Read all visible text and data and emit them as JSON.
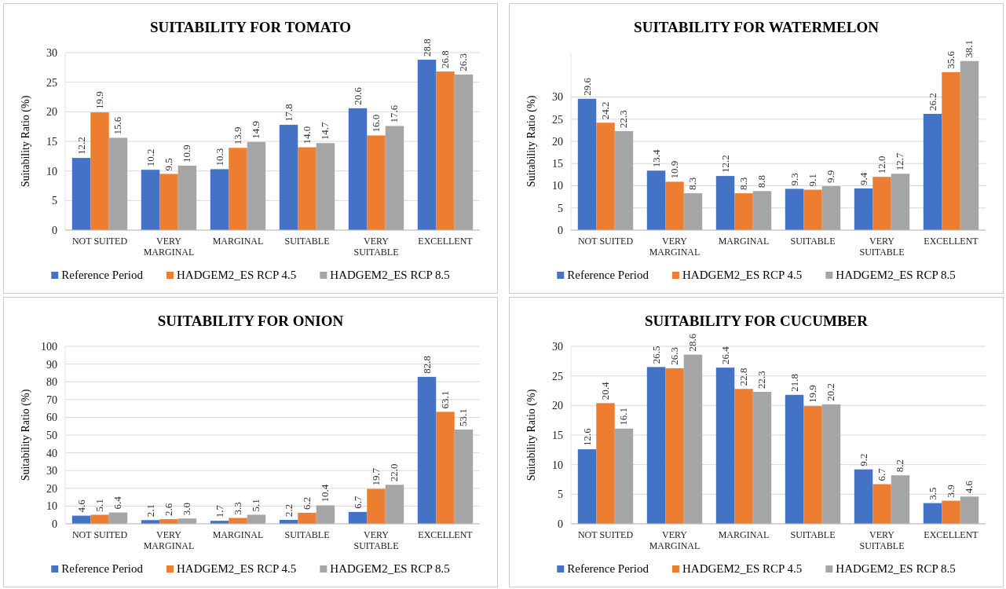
{
  "chart_data": [
    {
      "type": "bar",
      "title": "SUITABILITY FOR TOMATO",
      "ylabel": "Suitability  Ratio (%)",
      "categories": [
        "NOT SUITED",
        "VERY MARGINAL",
        "MARGINAL",
        "SUITABLE",
        "VERY SUITABLE",
        "EXCELLENT"
      ],
      "series": [
        {
          "name": "Reference Period",
          "color": "#4472c4",
          "values": [
            12.2,
            10.2,
            10.3,
            17.8,
            20.6,
            28.8
          ],
          "value_labels": [
            "12.2",
            "10.2",
            "10.3",
            "17.8",
            "20.6",
            "28.8"
          ]
        },
        {
          "name": "HADGEM2_ES RCP 4.5",
          "color": "#ed7d31",
          "values": [
            19.9,
            9.5,
            13.9,
            14.0,
            16.0,
            26.8
          ],
          "value_labels": [
            "19.9",
            "9.5",
            "13.9",
            "14.0",
            "16.0",
            "26.8"
          ]
        },
        {
          "name": "HADGEM2_ES RCP 8.5",
          "color": "#a5a5a5",
          "values": [
            15.6,
            10.9,
            14.9,
            14.7,
            17.6,
            26.3
          ],
          "value_labels": [
            "15.6",
            "10.9",
            "14.9",
            "14.7",
            "17.6",
            "26.3"
          ]
        }
      ],
      "ylim": [
        0,
        30
      ],
      "yticks": [
        0,
        5,
        10,
        15,
        20,
        25,
        30
      ],
      "grid": "y",
      "legend": "bottom"
    },
    {
      "type": "bar",
      "title": "SUITABILITY FOR WATERMELON",
      "ylabel": "Suitability  Ratio (%)",
      "categories": [
        "NOT SUITED",
        "VERY MARGINAL",
        "MARGINAL",
        "SUITABLE",
        "VERY SUITABLE",
        "EXCELLENT"
      ],
      "series": [
        {
          "name": "Reference Period",
          "color": "#4472c4",
          "values": [
            29.6,
            13.4,
            12.2,
            9.3,
            9.4,
            26.2
          ],
          "value_labels": [
            "29.6",
            "13.4",
            "12.2",
            "9.3",
            "9.4",
            "26.2"
          ]
        },
        {
          "name": "HADGEM2_ES RCP 4.5",
          "color": "#ed7d31",
          "values": [
            24.2,
            10.9,
            8.3,
            9.1,
            12.0,
            35.6
          ],
          "value_labels": [
            "24.2",
            "10.9",
            "8.3",
            "9.1",
            "12.0",
            "35.6"
          ]
        },
        {
          "name": "HADGEM2_ES RCP 8.5",
          "color": "#a5a5a5",
          "values": [
            22.3,
            8.3,
            8.8,
            9.9,
            12.7,
            38.1
          ],
          "value_labels": [
            "22.3",
            "8.3",
            "8.8",
            "9.9",
            "12.7",
            "38.1"
          ]
        }
      ],
      "ylim": [
        0,
        40
      ],
      "yticks": [
        0,
        5,
        10,
        15,
        20,
        25,
        30
      ],
      "grid": "y",
      "legend": "bottom"
    },
    {
      "type": "bar",
      "title": "SUITABILITY FOR ONION",
      "ylabel": "Suitability  Ratio (%)",
      "categories": [
        "NOT SUITED",
        "VERY MARGINAL",
        "MARGINAL",
        "SUITABLE",
        "VERY SUITABLE",
        "EXCELLENT"
      ],
      "series": [
        {
          "name": "Reference Period",
          "color": "#4472c4",
          "values": [
            4.6,
            2.1,
            1.7,
            2.2,
            6.7,
            82.8
          ],
          "value_labels": [
            "4.6",
            "2.1",
            "1.7",
            "2.2",
            "6.7",
            "82.8"
          ]
        },
        {
          "name": "HADGEM2_ES RCP 4.5",
          "color": "#ed7d31",
          "values": [
            5.1,
            2.6,
            3.3,
            6.2,
            19.7,
            63.1
          ],
          "value_labels": [
            "5.1",
            "2.6",
            "3.3",
            "6.2",
            "19.7",
            "63.1"
          ]
        },
        {
          "name": "HADGEM2_ES RCP 8.5",
          "color": "#a5a5a5",
          "values": [
            6.4,
            3.0,
            5.1,
            10.4,
            22.0,
            53.1
          ],
          "value_labels": [
            "6.4",
            "3.0",
            "5.1",
            "10.4",
            "22.0",
            "53.1"
          ]
        }
      ],
      "ylim": [
        0,
        100
      ],
      "yticks": [
        0,
        10,
        20,
        30,
        40,
        50,
        60,
        70,
        80,
        90,
        100
      ],
      "grid": "y",
      "legend": "bottom"
    },
    {
      "type": "bar",
      "title": "SUITABILITY FOR CUCUMBER",
      "ylabel": "Suitability  Ratio (%)",
      "categories": [
        "NOT SUITED",
        "VERY MARGINAL",
        "MARGINAL",
        "SUITABLE",
        "VERY SUITABLE",
        "EXCELLENT"
      ],
      "series": [
        {
          "name": "Reference Period",
          "color": "#4472c4",
          "values": [
            12.6,
            26.5,
            26.4,
            21.8,
            9.2,
            3.5
          ],
          "value_labels": [
            "12.6",
            "26.5",
            "26.4",
            "21.8",
            "9.2",
            "3.5"
          ]
        },
        {
          "name": "HADGEM2_ES RCP 4.5",
          "color": "#ed7d31",
          "values": [
            20.4,
            26.3,
            22.8,
            19.9,
            6.7,
            3.9
          ],
          "value_labels": [
            "20.4",
            "26.3",
            "22.8",
            "19.9",
            "6.7",
            "3.9"
          ]
        },
        {
          "name": "HADGEM2_ES RCP 8.5",
          "color": "#a5a5a5",
          "values": [
            16.1,
            28.6,
            22.3,
            20.2,
            8.2,
            4.6
          ],
          "value_labels": [
            "16.1",
            "28.6",
            "22.3",
            "20.2",
            "8.2",
            "4.6"
          ]
        }
      ],
      "ylim": [
        0,
        30
      ],
      "yticks": [
        0,
        5,
        10,
        15,
        20,
        25,
        30
      ],
      "grid": "y",
      "legend": "bottom"
    }
  ]
}
